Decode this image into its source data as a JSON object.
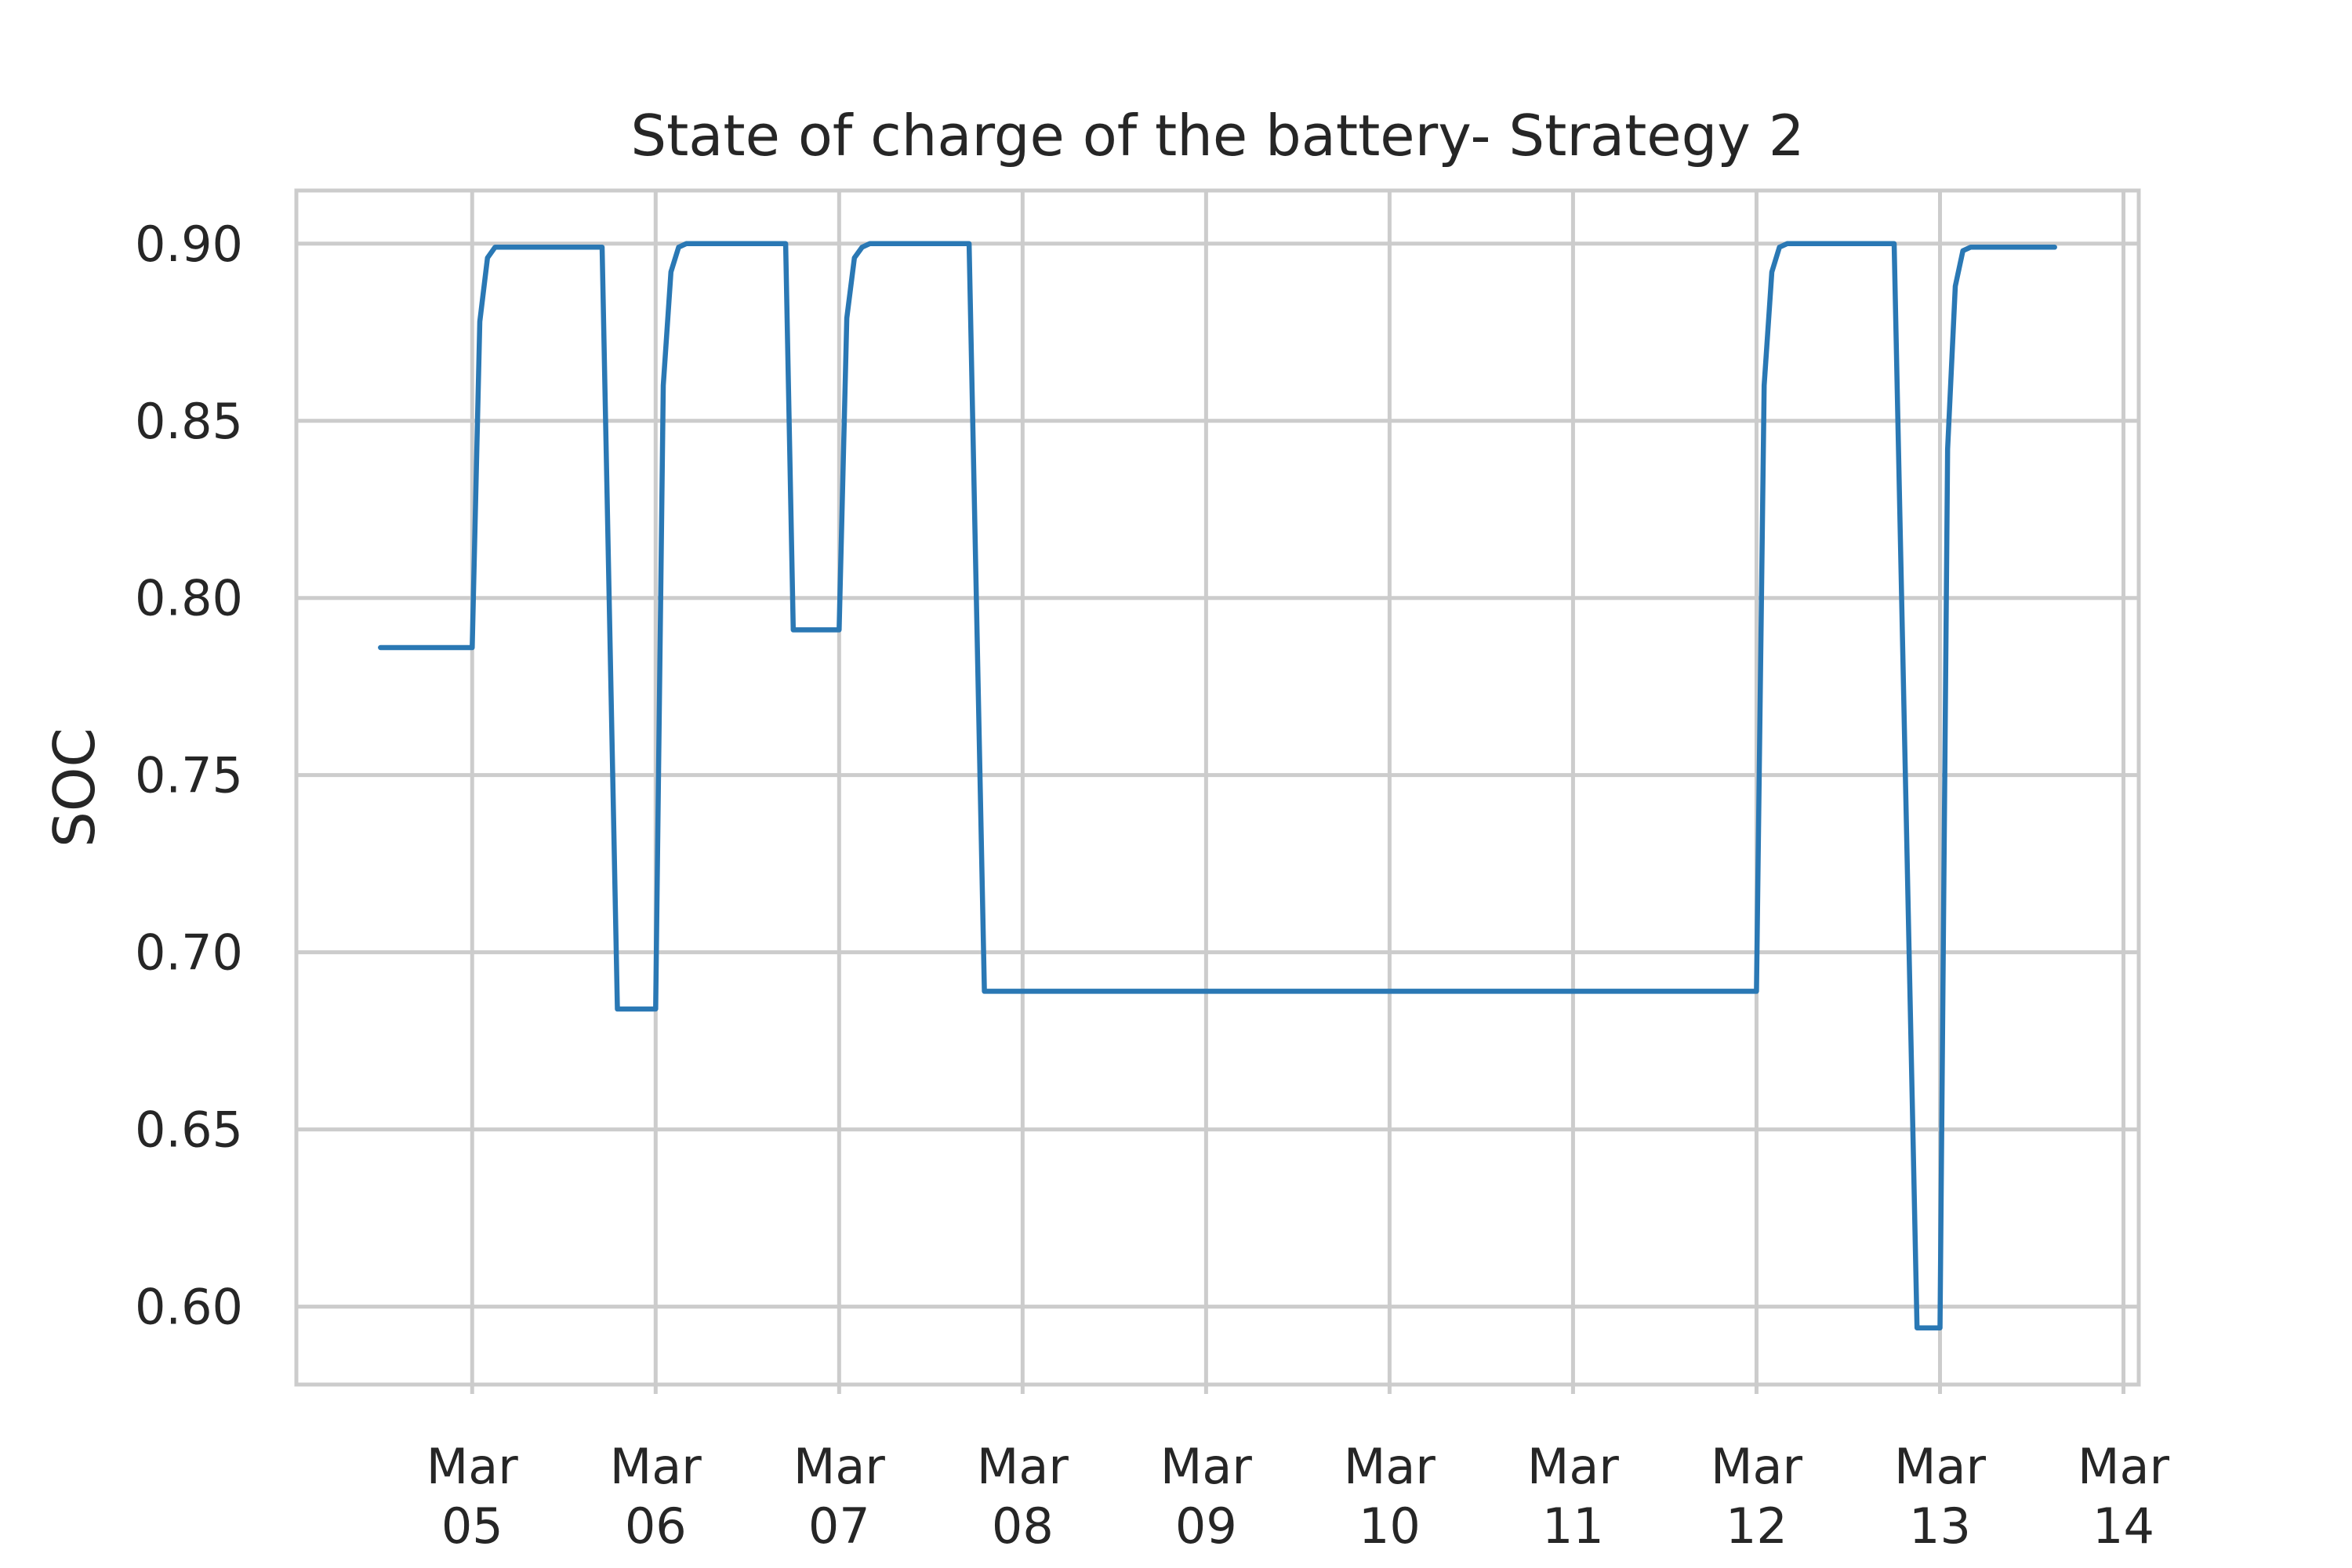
{
  "chart_data": {
    "type": "line",
    "title": "State of charge of the battery- Strategy 2",
    "xlabel": "",
    "ylabel": "SOC",
    "x_ticks": [
      {
        "date": "2023-03-05",
        "line1": "Mar",
        "line2": "05"
      },
      {
        "date": "2023-03-06",
        "line1": "Mar",
        "line2": "06"
      },
      {
        "date": "2023-03-07",
        "line1": "Mar",
        "line2": "07"
      },
      {
        "date": "2023-03-08",
        "line1": "Mar",
        "line2": "08"
      },
      {
        "date": "2023-03-09",
        "line1": "Mar",
        "line2": "09"
      },
      {
        "date": "2023-03-10",
        "line1": "Mar",
        "line2": "10"
      },
      {
        "date": "2023-03-11",
        "line1": "Mar",
        "line2": "11"
      },
      {
        "date": "2023-03-12",
        "line1": "Mar",
        "line2": "12"
      },
      {
        "date": "2023-03-13",
        "line1": "Mar",
        "line2": "13"
      },
      {
        "date": "2023-03-14",
        "line1": "Mar",
        "line2": "14"
      }
    ],
    "y_ticks": [
      0.6,
      0.65,
      0.7,
      0.75,
      0.8,
      0.85,
      0.9
    ],
    "y_tick_labels": [
      "0.60",
      "0.65",
      "0.70",
      "0.75",
      "0.80",
      "0.85",
      "0.90"
    ],
    "xlim": [
      "2023-03-04 01:00",
      "2023-03-14 02:00"
    ],
    "ylim": [
      0.578,
      0.915
    ],
    "grid": true,
    "colors": {
      "line": "#2a78b4",
      "grid": "#cccccc",
      "text": "#262626",
      "background": "#ffffff"
    },
    "series": [
      {
        "color": "#2a78b4",
        "points": [
          [
            "2023-03-04 12:00",
            0.786
          ],
          [
            "2023-03-05 00:00",
            0.786
          ],
          [
            "2023-03-05 01:00",
            0.878
          ],
          [
            "2023-03-05 02:00",
            0.896
          ],
          [
            "2023-03-05 03:00",
            0.899
          ],
          [
            "2023-03-05 17:00",
            0.899
          ],
          [
            "2023-03-05 19:00",
            0.684
          ],
          [
            "2023-03-06 00:00",
            0.684
          ],
          [
            "2023-03-06 01:00",
            0.86
          ],
          [
            "2023-03-06 02:00",
            0.892
          ],
          [
            "2023-03-06 03:00",
            0.899
          ],
          [
            "2023-03-06 04:00",
            0.9
          ],
          [
            "2023-03-06 17:00",
            0.9
          ],
          [
            "2023-03-06 18:00",
            0.791
          ],
          [
            "2023-03-07 00:00",
            0.791
          ],
          [
            "2023-03-07 01:00",
            0.879
          ],
          [
            "2023-03-07 02:00",
            0.896
          ],
          [
            "2023-03-07 03:00",
            0.899
          ],
          [
            "2023-03-07 04:00",
            0.9
          ],
          [
            "2023-03-07 17:00",
            0.9
          ],
          [
            "2023-03-07 19:00",
            0.689
          ],
          [
            "2023-03-12 00:00",
            0.689
          ],
          [
            "2023-03-12 01:00",
            0.86
          ],
          [
            "2023-03-12 02:00",
            0.892
          ],
          [
            "2023-03-12 03:00",
            0.899
          ],
          [
            "2023-03-12 04:00",
            0.9
          ],
          [
            "2023-03-12 18:00",
            0.9
          ],
          [
            "2023-03-12 21:00",
            0.594
          ],
          [
            "2023-03-13 00:00",
            0.594
          ],
          [
            "2023-03-13 01:00",
            0.842
          ],
          [
            "2023-03-13 02:00",
            0.888
          ],
          [
            "2023-03-13 03:00",
            0.898
          ],
          [
            "2023-03-13 04:00",
            0.899
          ],
          [
            "2023-03-13 15:00",
            0.899
          ]
        ]
      }
    ]
  }
}
